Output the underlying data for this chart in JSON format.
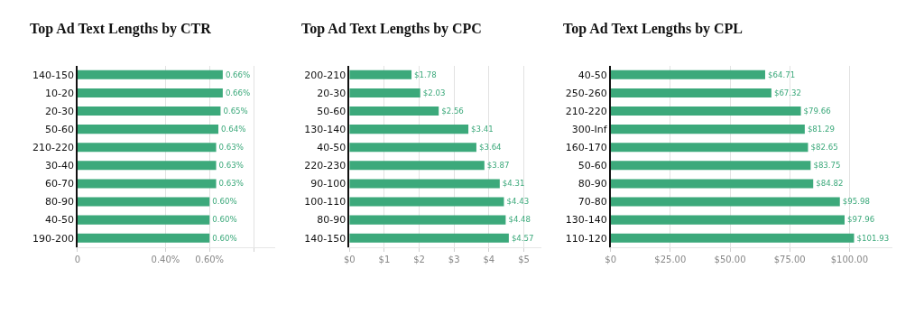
{
  "chart_data": [
    {
      "type": "bar",
      "orientation": "horizontal",
      "title": "Top Ad Text Lengths by CTR",
      "categories": [
        "140-150",
        "10-20",
        "20-30",
        "50-60",
        "210-220",
        "30-40",
        "60-70",
        "80-90",
        "40-50",
        "190-200"
      ],
      "values": [
        0.66,
        0.66,
        0.65,
        0.64,
        0.63,
        0.63,
        0.63,
        0.6,
        0.6,
        0.6
      ],
      "value_labels": [
        "0.66%",
        "0.66%",
        "0.65%",
        "0.64%",
        "0.63%",
        "0.63%",
        "0.63%",
        "0.60%",
        "0.60%",
        "0.60%"
      ],
      "color": "#3ca97b",
      "xlim": [
        0,
        0.9
      ],
      "xticks": [
        0,
        {
          "value": 0.4,
          "label": "0.40%"
        },
        {
          "value": 0.6,
          "label": "0.60%"
        },
        {
          "value": 0.8,
          "label": null
        }
      ],
      "grid": "x"
    },
    {
      "type": "bar",
      "orientation": "horizontal",
      "title": "Top Ad Text Lengths by CPC",
      "categories": [
        "200-210",
        "20-30",
        "50-60",
        "130-140",
        "40-50",
        "220-230",
        "90-100",
        "100-110",
        "80-90",
        "140-150"
      ],
      "values": [
        1.78,
        2.03,
        2.56,
        3.41,
        3.64,
        3.87,
        4.31,
        4.43,
        4.48,
        4.57
      ],
      "value_labels": [
        "$1.78",
        "$2.03",
        "$2.56",
        "$3.41",
        "$3.64",
        "$3.87",
        "$4.31",
        "$4.43",
        "$4.48",
        "$4.57"
      ],
      "color": "#3ca97b",
      "xlim": [
        0,
        5.5
      ],
      "xticks": [
        {
          "value": 0,
          "label": "$0"
        },
        {
          "value": 1,
          "label": "$1"
        },
        {
          "value": 2,
          "label": "$2"
        },
        {
          "value": 3,
          "label": "$3"
        },
        {
          "value": 4,
          "label": "$4"
        },
        {
          "value": 5,
          "label": "$5"
        }
      ],
      "grid": "x"
    },
    {
      "type": "bar",
      "orientation": "horizontal",
      "title": "Top Ad Text Lengths by CPL",
      "categories": [
        "40-50",
        "250-260",
        "210-220",
        "300-Inf",
        "160-170",
        "50-60",
        "80-90",
        "70-80",
        "130-140",
        "110-120"
      ],
      "values": [
        64.71,
        67.32,
        79.66,
        81.29,
        82.65,
        83.75,
        84.82,
        95.98,
        97.96,
        101.93
      ],
      "value_labels": [
        "$64.71",
        "$67.32",
        "$79.66",
        "$81.29",
        "$82.65",
        "$83.75",
        "$84.82",
        "$95.98",
        "$97.96",
        "$101.93"
      ],
      "color": "#3ca97b",
      "xlim": [
        0,
        118
      ],
      "xticks": [
        {
          "value": 0,
          "label": "$0"
        },
        {
          "value": 25,
          "label": "$25.00"
        },
        {
          "value": 50,
          "label": "$50.00"
        },
        {
          "value": 75,
          "label": "$75.00"
        },
        {
          "value": 100,
          "label": "$100.00"
        }
      ],
      "grid": "x"
    }
  ]
}
